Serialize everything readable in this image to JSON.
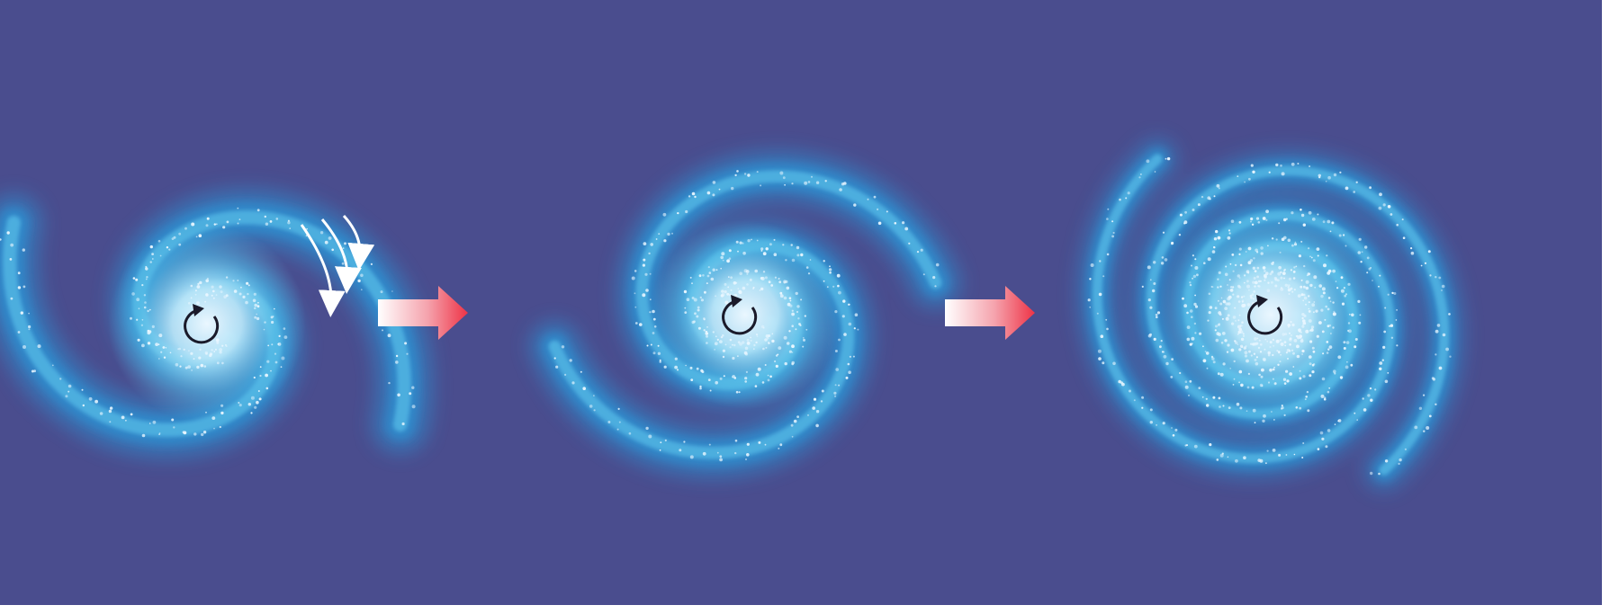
{
  "colors": {
    "background": "#4a4d8e",
    "arm_outer": "#2f8fd0",
    "arm_inner": "#5ec8ee",
    "core": "#eaf7ff",
    "transition_arrow_start": "#ffffff",
    "transition_arrow_end": "#ee3346",
    "rotation_marker": "#1a1a2a",
    "motion_lines": "#ffffff"
  },
  "stages": [
    {
      "id": "stage-1",
      "description_icon": "loose-two-arm-spiral-galaxy-icon",
      "has_motion_lines": true
    },
    {
      "id": "stage-2",
      "description_icon": "tighter-spiral-galaxy-icon",
      "has_motion_lines": false
    },
    {
      "id": "stage-3",
      "description_icon": "tightly-wound-spiral-galaxy-icon",
      "has_motion_lines": false
    }
  ],
  "transitions": [
    {
      "from": "stage-1",
      "to": "stage-2",
      "icon": "right-arrow-icon"
    },
    {
      "from": "stage-2",
      "to": "stage-3",
      "icon": "right-arrow-icon"
    }
  ],
  "rotation_icon": "counterclockwise-rotation-icon"
}
